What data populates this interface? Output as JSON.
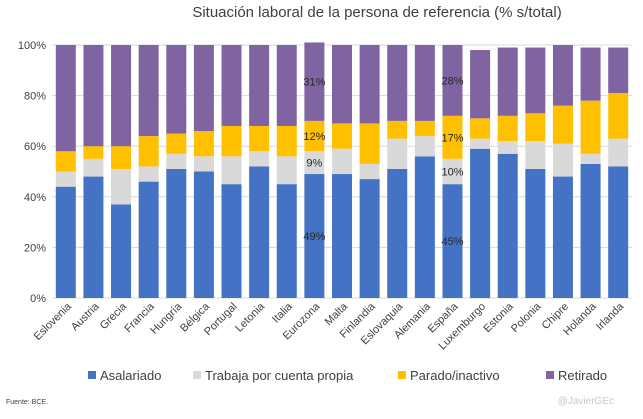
{
  "chart_data": {
    "type": "bar",
    "stacked": true,
    "title": "Situación laboral de la persona de referencia (% s/total)",
    "xlabel": "",
    "ylabel": "",
    "ylim": [
      0,
      100
    ],
    "y_ticks": [
      "0%",
      "20%",
      "40%",
      "60%",
      "80%",
      "100%"
    ],
    "grid": true,
    "legend_position": "bottom",
    "categories": [
      "Eslovenia",
      "Austria",
      "Grecia",
      "Francia",
      "Hungría",
      "Bélgica",
      "Portugal",
      "Letonia",
      "Italia",
      "Eurozona",
      "Malta",
      "Finlandia",
      "Eslovaquia",
      "Alemania",
      "España",
      "Luxemburgo",
      "Estonia",
      "Polonia",
      "Chipre",
      "Holanda",
      "Irlanda"
    ],
    "series": [
      {
        "name": "Asalariado",
        "color": "#4472c4",
        "values": [
          44,
          48,
          37,
          46,
          51,
          50,
          45,
          52,
          45,
          49,
          49,
          47,
          51,
          56,
          45,
          59,
          57,
          51,
          48,
          53,
          52
        ]
      },
      {
        "name": "Trabaja por cuenta propia",
        "color": "#d9d9d9",
        "values": [
          6,
          7,
          14,
          6,
          6,
          6,
          11,
          6,
          11,
          9,
          10,
          6,
          12,
          8,
          10,
          4,
          5,
          11,
          13,
          4,
          11
        ]
      },
      {
        "name": "Parado/inactivo",
        "color": "#ffc000",
        "values": [
          8,
          5,
          9,
          12,
          8,
          10,
          12,
          10,
          12,
          12,
          10,
          16,
          7,
          6,
          17,
          8,
          10,
          11,
          15,
          21,
          18
        ]
      },
      {
        "name": "Retirado",
        "color": "#8064a2",
        "values": [
          42,
          40,
          40,
          36,
          35,
          34,
          32,
          32,
          32,
          31,
          31,
          31,
          30,
          30,
          28,
          27,
          27,
          26,
          24,
          21,
          18
        ]
      }
    ],
    "annotations": [
      {
        "category": "Eurozona",
        "series": "Asalariado",
        "label": "49%"
      },
      {
        "category": "Eurozona",
        "series": "Trabaja por cuenta propia",
        "label": "9%"
      },
      {
        "category": "Eurozona",
        "series": "Parado/inactivo",
        "label": "12%"
      },
      {
        "category": "Eurozona",
        "series": "Retirado",
        "label": "31%"
      },
      {
        "category": "España",
        "series": "Asalariado",
        "label": "45%"
      },
      {
        "category": "España",
        "series": "Trabaja por cuenta propia",
        "label": "10%"
      },
      {
        "category": "España",
        "series": "Parado/inactivo",
        "label": "17%"
      },
      {
        "category": "España",
        "series": "Retirado",
        "label": "28%"
      }
    ],
    "source": "Fuente: BCE.",
    "credit": "@JavierGEc"
  }
}
